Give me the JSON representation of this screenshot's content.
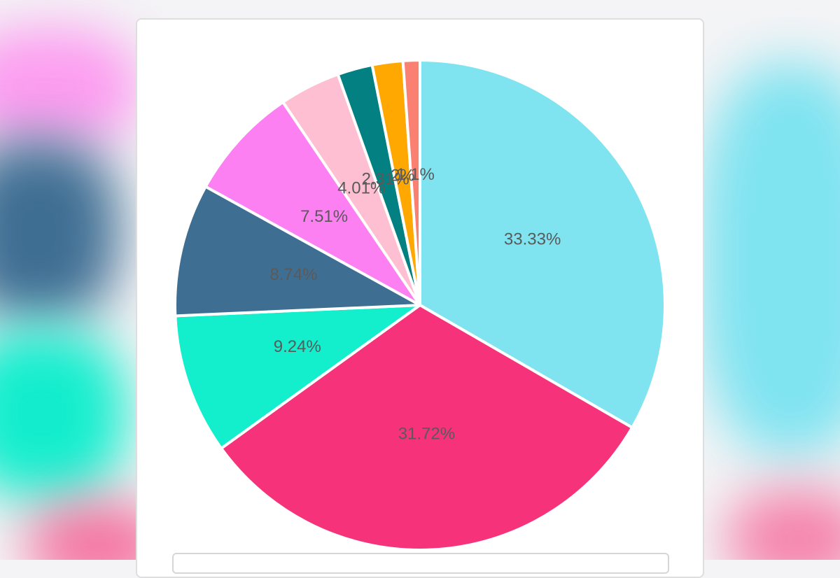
{
  "chart_data": {
    "type": "pie",
    "slices": [
      {
        "value": 33.33,
        "label": "33.33%",
        "color": "#7fe3f0"
      },
      {
        "value": 31.72,
        "label": "31.72%",
        "color": "#f6337a"
      },
      {
        "value": 9.24,
        "label": "9.24%",
        "color": "#13eecd"
      },
      {
        "value": 8.74,
        "label": "8.74%",
        "color": "#3f6e93"
      },
      {
        "value": 7.51,
        "label": "7.51%",
        "color": "#fd80f3"
      },
      {
        "value": 4.01,
        "label": "4.01%",
        "color": "#fdbfd1"
      },
      {
        "value": 2.31,
        "label": "2.31%",
        "color": "#038081"
      },
      {
        "value": 2.02,
        "label": "2%",
        "color": "#ffa801"
      },
      {
        "value": 1.11,
        "label": "1.1%",
        "color": "#fa8072"
      }
    ]
  }
}
